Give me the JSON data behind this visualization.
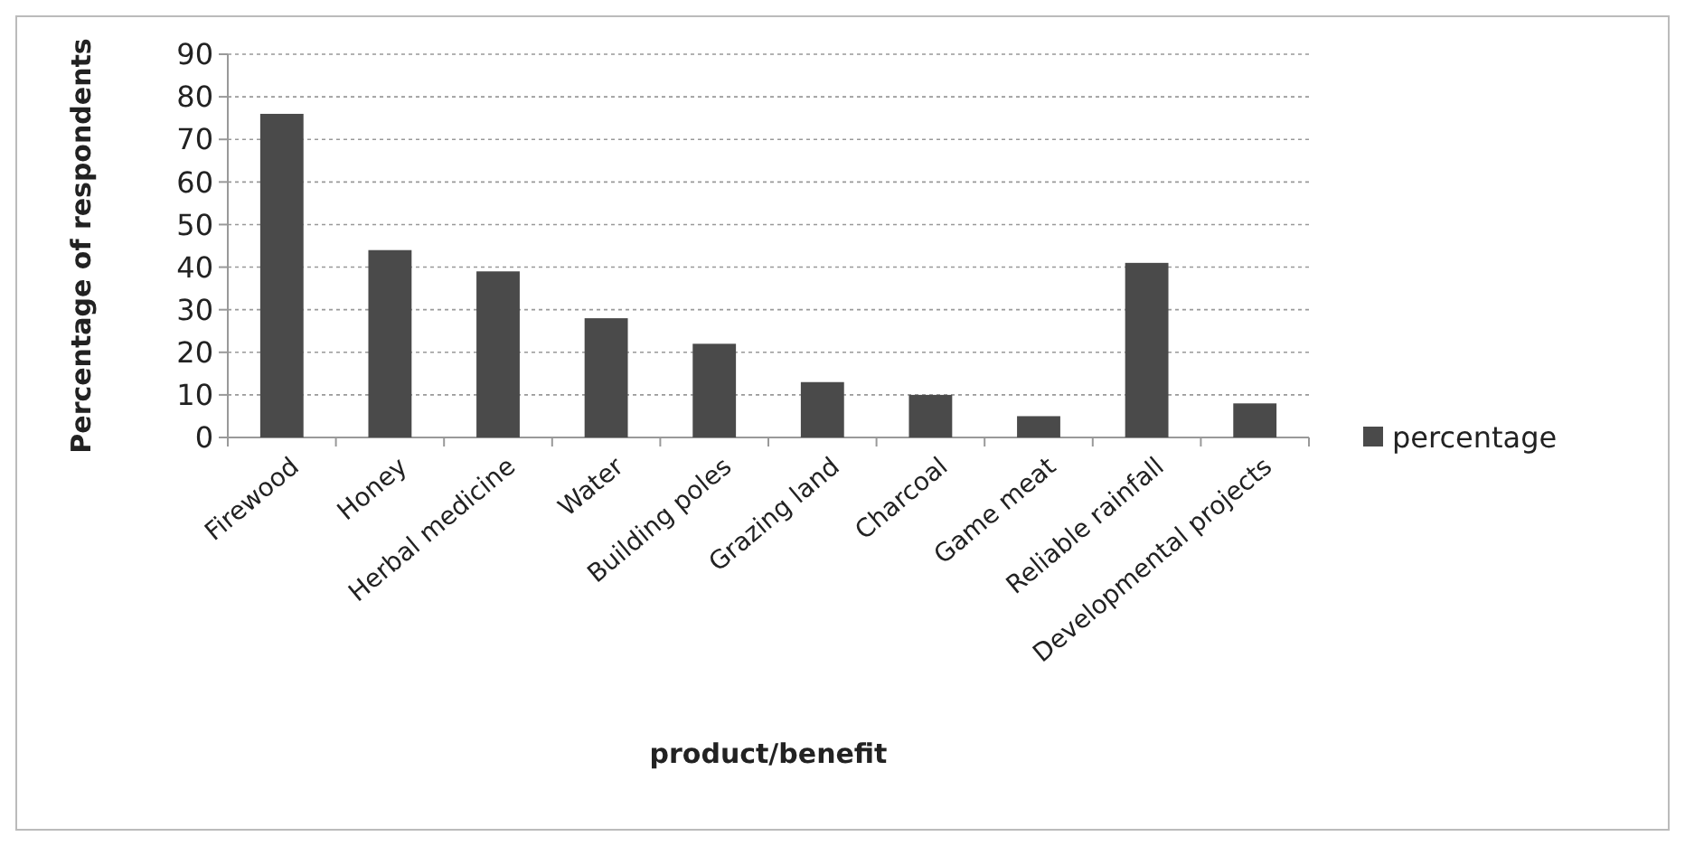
{
  "chart_data": {
    "type": "bar",
    "xlabel": "product/benefit",
    "ylabel": "Percentage of respondents",
    "categories": [
      "Firewood",
      "Honey",
      "Herbal medicine",
      "Water",
      "Building poles",
      "Grazing land",
      "Charcoal",
      "Game meat",
      "Reliable rainfall",
      "Developmental projects"
    ],
    "series": [
      {
        "name": "percentage",
        "color": "#4a4a4a",
        "values": [
          76,
          44,
          39,
          28,
          22,
          13,
          10,
          5,
          41,
          8
        ]
      }
    ],
    "ylim": [
      0,
      90
    ],
    "yticks": [
      0,
      10,
      20,
      30,
      40,
      50,
      60,
      70,
      80,
      90
    ],
    "grid": "y",
    "legend": "right"
  }
}
